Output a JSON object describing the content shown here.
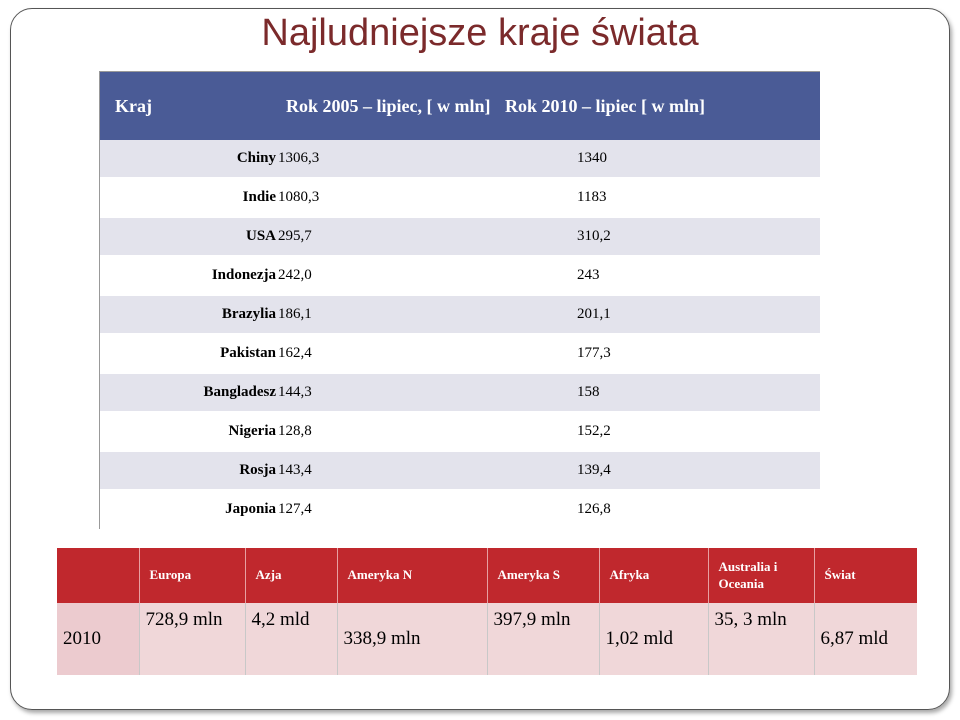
{
  "title": "Najludniejsze kraje świata",
  "top_table": {
    "headers": [
      "Kraj",
      "Rok 2005 – lipiec, [ w mln]",
      "Rok 2010 – lipiec [ w mln]"
    ],
    "rows": [
      [
        "Chiny",
        "1306,3",
        "1340"
      ],
      [
        "Indie",
        "1080,3",
        "1183"
      ],
      [
        "USA",
        "295,7",
        "310,2"
      ],
      [
        "Indonezja",
        "242,0",
        "243"
      ],
      [
        "Brazylia",
        "186,1",
        "201,1"
      ],
      [
        "Pakistan",
        "162,4",
        "177,3"
      ],
      [
        "Bangladesz",
        "144,3",
        "158"
      ],
      [
        "Nigeria",
        "128,8",
        "152,2"
      ],
      [
        "Rosja",
        "143,4",
        "139,4"
      ],
      [
        "Japonia",
        "127,4",
        "126,8"
      ]
    ]
  },
  "bottom_table": {
    "headers": [
      "",
      "Europa",
      "Azja",
      "Ameryka N",
      "Ameryka S",
      "Afryka",
      "Australia i Oceania",
      "Świat"
    ],
    "row": [
      "2010",
      "728,9 mln",
      "4,2 mld",
      "338,9 mln",
      "397,9 mln",
      "1,02 mld",
      "35, 3 mln",
      "6,87 mld"
    ]
  }
}
